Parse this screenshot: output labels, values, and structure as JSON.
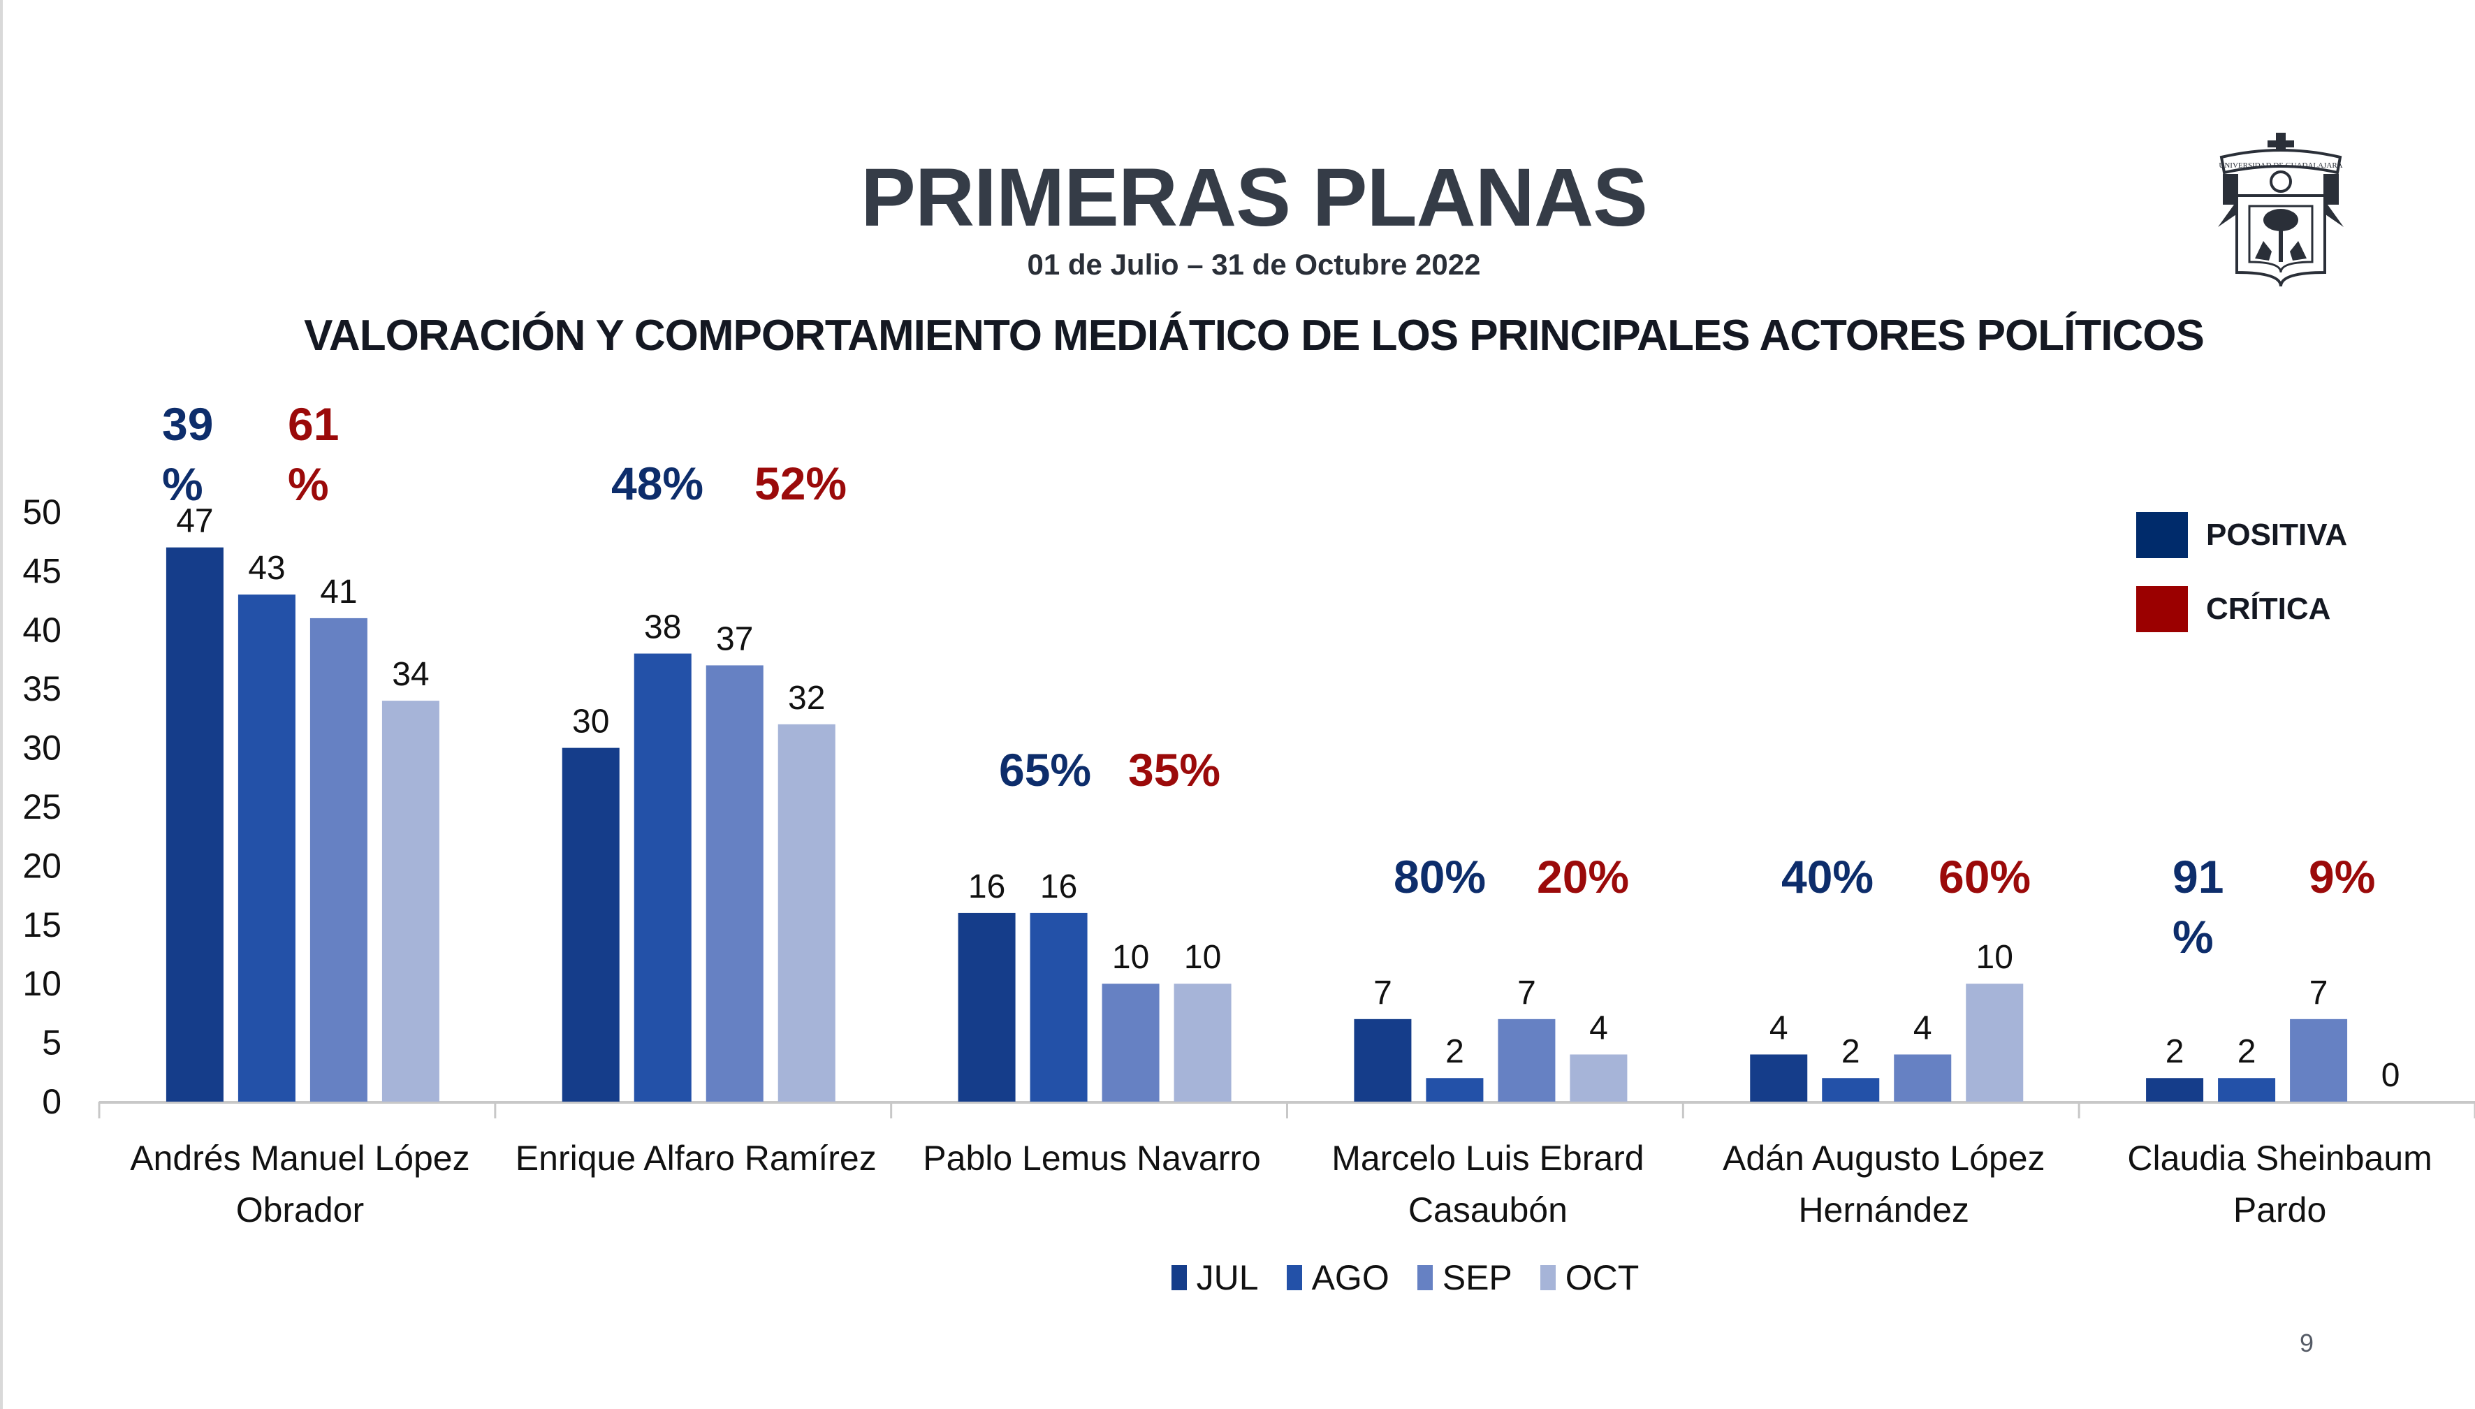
{
  "header": {
    "title": "PRIMERAS PLANAS",
    "date_range": "01 de Julio – 31 de Octubre 2022",
    "subtitle": "VALORACIÓN Y COMPORTAMIENTO MEDIÁTICO DE LOS PRINCIPALES ACTORES POLÍTICOS",
    "logo": "universidad-de-guadalajara-crest",
    "logo_text": "UNIVERSIDAD DE GUADALAJARA",
    "logo_motto_left": "PIENSA Y",
    "logo_motto_right": "TRABAJA"
  },
  "sentiment_legend": [
    {
      "label": "POSITIVA",
      "color": "#002b6b"
    },
    {
      "label": "CRÍTICA",
      "color": "#9b0000"
    }
  ],
  "page_number": "9",
  "chart_data": {
    "type": "bar",
    "title": "VALORACIÓN Y COMPORTAMIENTO MEDIÁTICO DE LOS PRINCIPALES ACTORES POLÍTICOS",
    "xlabel": "",
    "ylabel": "",
    "ylim": [
      0,
      50
    ],
    "yticks": [
      0,
      5,
      10,
      15,
      20,
      25,
      30,
      35,
      40,
      45,
      50
    ],
    "grid": false,
    "legend_position": "bottom",
    "categories": [
      [
        "Andrés Manuel López",
        "Obrador"
      ],
      [
        "Enrique Alfaro Ramírez"
      ],
      [
        "Pablo Lemus Navarro"
      ],
      [
        "Marcelo Luis Ebrard",
        "Casaubón"
      ],
      [
        "Adán Augusto López",
        "Hernández"
      ],
      [
        "Claudia Sheinbaum",
        "Pardo"
      ]
    ],
    "series": [
      {
        "name": "JUL",
        "color": "#153d8a",
        "values": [
          47,
          30,
          16,
          7,
          4,
          2
        ]
      },
      {
        "name": "AGO",
        "color": "#2351a8",
        "values": [
          43,
          38,
          16,
          2,
          2,
          2
        ]
      },
      {
        "name": "SEP",
        "color": "#6681c3",
        "values": [
          41,
          37,
          10,
          7,
          4,
          7
        ]
      },
      {
        "name": "OCT",
        "color": "#a6b4d8",
        "values": [
          34,
          32,
          10,
          4,
          10,
          0
        ]
      }
    ],
    "annotations": [
      {
        "category": 0,
        "positiva": "39%",
        "critica": "61%",
        "wrapped": true
      },
      {
        "category": 1,
        "positiva": "48%",
        "critica": "52%",
        "wrapped": false
      },
      {
        "category": 2,
        "positiva": "65%",
        "critica": "35%",
        "wrapped": false
      },
      {
        "category": 3,
        "positiva": "80%",
        "critica": "20%",
        "wrapped": false
      },
      {
        "category": 4,
        "positiva": "40%",
        "critica": "60%",
        "wrapped": false
      },
      {
        "category": 5,
        "positiva": "91%",
        "critica": "9%",
        "wrapped_positiva": true
      }
    ],
    "annotation_colors": {
      "positiva": "#0d2d6b",
      "critica": "#9b0a0a"
    }
  }
}
